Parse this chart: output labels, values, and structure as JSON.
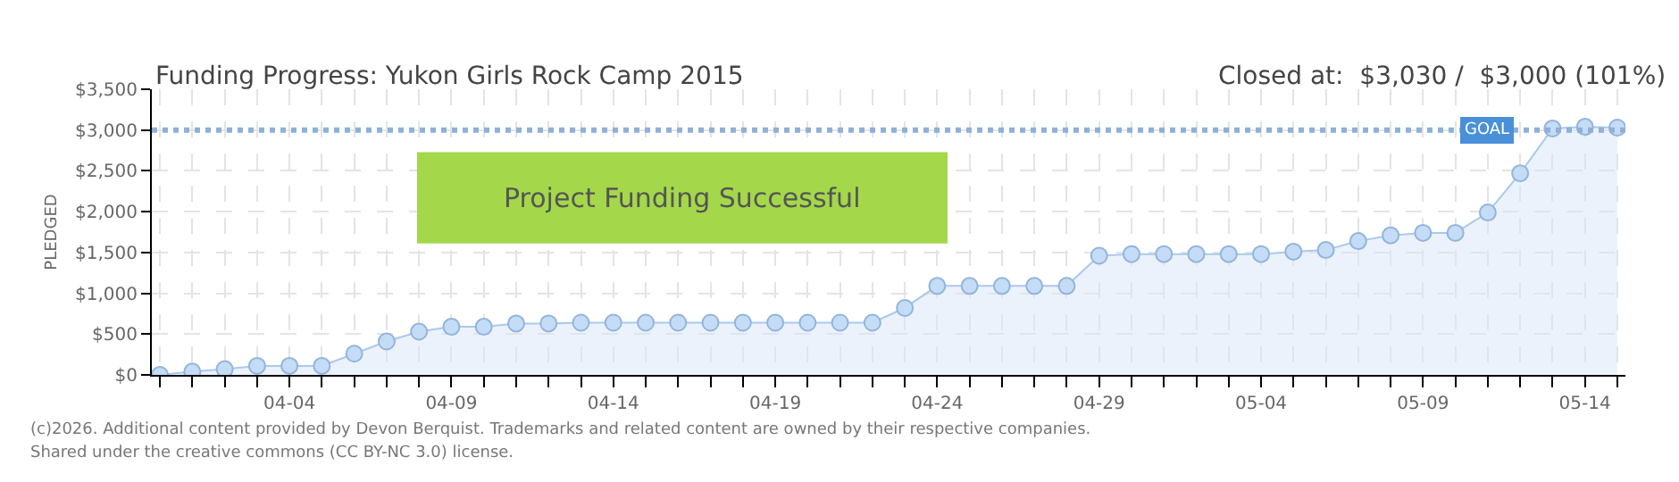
{
  "chart_data": {
    "type": "area",
    "title": "Funding Progress: Yukon Girls Rock Camp 2015",
    "subtitle": "Closed at:  $3,030 /  $3,000 (101%)",
    "ylabel": "PLEDGED",
    "x": [
      "--03-31",
      "--04-01",
      "--04-02",
      "--04-03",
      "--04-04",
      "--04-05",
      "--04-06",
      "--04-07",
      "--04-08",
      "--04-09",
      "--04-10",
      "--04-11",
      "--04-12",
      "--04-13",
      "--04-14",
      "--04-15",
      "--04-16",
      "--04-17",
      "--04-18",
      "--04-19",
      "--04-20",
      "--04-21",
      "--04-22",
      "--04-23",
      "--04-24",
      "--04-25",
      "--04-26",
      "--04-27",
      "--04-28",
      "--04-29",
      "--04-30",
      "--05-01",
      "--05-02",
      "--05-03",
      "--05-04",
      "--05-05",
      "--05-06",
      "--05-07",
      "--05-08",
      "--05-09",
      "--05-10",
      "--05-11",
      "--05-12",
      "--05-13",
      "--05-14",
      "--05-15"
    ],
    "series": [
      {
        "color": "#a9c9ee",
        "values": [
          0,
          40,
          70,
          110,
          110,
          110,
          260,
          410,
          530,
          590,
          590,
          630,
          630,
          640,
          640,
          640,
          640,
          640,
          640,
          640,
          640,
          640,
          640,
          820,
          1090,
          1090,
          1090,
          1090,
          1090,
          1460,
          1480,
          1480,
          1480,
          1480,
          1480,
          1510,
          1530,
          1640,
          1710,
          1740,
          1740,
          1990,
          2470,
          3020,
          3040,
          3030
        ]
      }
    ],
    "xlim": [
      "--03-30T18:00",
      "--05-15T06:00"
    ],
    "xticks": [
      {
        "value": "--03-31",
        "label": null
      },
      {
        "value": "--04-01",
        "label": null
      },
      {
        "value": "--04-02",
        "label": null
      },
      {
        "value": "--04-03",
        "label": null
      },
      {
        "value": "--04-04",
        "label": "04-04"
      },
      {
        "value": "--04-05",
        "label": null
      },
      {
        "value": "--04-06",
        "label": null
      },
      {
        "value": "--04-07",
        "label": null
      },
      {
        "value": "--04-08",
        "label": null
      },
      {
        "value": "--04-09",
        "label": "04-09"
      },
      {
        "value": "--04-10",
        "label": null
      },
      {
        "value": "--04-11",
        "label": null
      },
      {
        "value": "--04-12",
        "label": null
      },
      {
        "value": "--04-13",
        "label": null
      },
      {
        "value": "--04-14",
        "label": "04-14"
      },
      {
        "value": "--04-15",
        "label": null
      },
      {
        "value": "--04-16",
        "label": null
      },
      {
        "value": "--04-17",
        "label": null
      },
      {
        "value": "--04-18",
        "label": null
      },
      {
        "value": "--04-19",
        "label": "04-19"
      },
      {
        "value": "--04-20",
        "label": null
      },
      {
        "value": "--04-21",
        "label": null
      },
      {
        "value": "--04-22",
        "label": null
      },
      {
        "value": "--04-23",
        "label": null
      },
      {
        "value": "--04-24",
        "label": "04-24"
      },
      {
        "value": "--04-25",
        "label": null
      },
      {
        "value": "--04-26",
        "label": null
      },
      {
        "value": "--04-27",
        "label": null
      },
      {
        "value": "--04-28",
        "label": null
      },
      {
        "value": "--04-29",
        "label": "04-29"
      },
      {
        "value": "--04-30",
        "label": null
      },
      {
        "value": "--05-01",
        "label": null
      },
      {
        "value": "--05-02",
        "label": null
      },
      {
        "value": "--05-03",
        "label": null
      },
      {
        "value": "--05-04",
        "label": "05-04"
      },
      {
        "value": "--05-05",
        "label": null
      },
      {
        "value": "--05-06",
        "label": null
      },
      {
        "value": "--05-07",
        "label": null
      },
      {
        "value": "--05-08",
        "label": null
      },
      {
        "value": "--05-09",
        "label": "05-09"
      },
      {
        "value": "--05-10",
        "label": null
      },
      {
        "value": "--05-11",
        "label": null
      },
      {
        "value": "--05-12",
        "label": null
      },
      {
        "value": "--05-13",
        "label": null
      },
      {
        "value": "--05-14",
        "label": "05-14"
      },
      {
        "value": "--05-15",
        "label": null
      }
    ],
    "ylim": [
      0,
      3500
    ],
    "yticks": [
      {
        "value": 0,
        "label": "$0"
      },
      {
        "value": 500,
        "label": "$500"
      },
      {
        "value": 1000,
        "label": "$1,000"
      },
      {
        "value": 1500,
        "label": "$1,500"
      },
      {
        "value": 2000,
        "label": "$2,000"
      },
      {
        "value": 2500,
        "label": "$2,500"
      },
      {
        "value": 3000,
        "label": "$3,000"
      },
      {
        "value": 3500,
        "label": "$3,500"
      }
    ],
    "ref_lines": [
      {
        "axis": "y",
        "value": 3000,
        "label": "GOAL",
        "color": "#8fb0d8",
        "line_style": "dotted"
      }
    ],
    "annotations": [
      "Project Funding Successful",
      "(c)2026. Additional content provided by Devon Berquist. Trademarks and related content are owned by their respective companies.",
      "Shared under the creative commons (CC BY-NC 3.0) license."
    ],
    "grid": true,
    "marker": "circle",
    "line_style": "solid"
  }
}
